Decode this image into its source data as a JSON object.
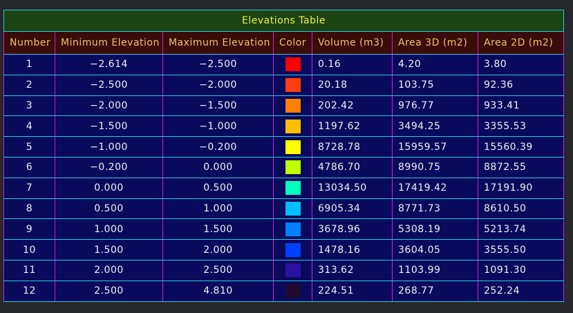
{
  "table": {
    "title": "Elevations Table",
    "headers": [
      "Number",
      "Minimum Elevation",
      "Maximum Elevation",
      "Color",
      "Volume (m3)",
      "Area 3D (m2)",
      "Area 2D (m2)"
    ],
    "rows": [
      {
        "number": "1",
        "min": "−2.614",
        "max": "−2.500",
        "color": "#ff0000",
        "volume": "0.16",
        "area3d": "4.20",
        "area2d": "3.80"
      },
      {
        "number": "2",
        "min": "−2.500",
        "max": "−2.000",
        "color": "#ff3f10",
        "volume": "20.18",
        "area3d": "103.75",
        "area2d": "92.36"
      },
      {
        "number": "3",
        "min": "−2.000",
        "max": "−1.500",
        "color": "#ff7f00",
        "volume": "202.42",
        "area3d": "976.77",
        "area2d": "933.41"
      },
      {
        "number": "4",
        "min": "−1.500",
        "max": "−1.000",
        "color": "#ffbf00",
        "volume": "1197.62",
        "area3d": "3494.25",
        "area2d": "3355.53"
      },
      {
        "number": "5",
        "min": "−1.000",
        "max": "−0.200",
        "color": "#ffff00",
        "volume": "8728.78",
        "area3d": "15959.57",
        "area2d": "15560.39"
      },
      {
        "number": "6",
        "min": "−0.200",
        "max": "0.000",
        "color": "#bfff00",
        "volume": "4786.70",
        "area3d": "8990.75",
        "area2d": "8872.55"
      },
      {
        "number": "7",
        "min": "0.000",
        "max": "0.500",
        "color": "#00ffbf",
        "volume": "13034.50",
        "area3d": "17419.42",
        "area2d": "17191.90"
      },
      {
        "number": "8",
        "min": "0.500",
        "max": "1.000",
        "color": "#00bfff",
        "volume": "6905.34",
        "area3d": "8771.73",
        "area2d": "8610.50"
      },
      {
        "number": "9",
        "min": "1.000",
        "max": "1.500",
        "color": "#007fff",
        "volume": "3678.96",
        "area3d": "5308.19",
        "area2d": "5213.74"
      },
      {
        "number": "10",
        "min": "1.500",
        "max": "2.000",
        "color": "#0040ff",
        "volume": "1478.16",
        "area3d": "3604.05",
        "area2d": "3555.50"
      },
      {
        "number": "11",
        "min": "2.000",
        "max": "2.500",
        "color": "#2a12a0",
        "volume": "313.62",
        "area3d": "1103.99",
        "area2d": "1091.30"
      },
      {
        "number": "12",
        "min": "2.500",
        "max": "4.810",
        "color": "#200a30",
        "volume": "224.51",
        "area3d": "268.77",
        "area2d": "252.24"
      }
    ]
  }
}
